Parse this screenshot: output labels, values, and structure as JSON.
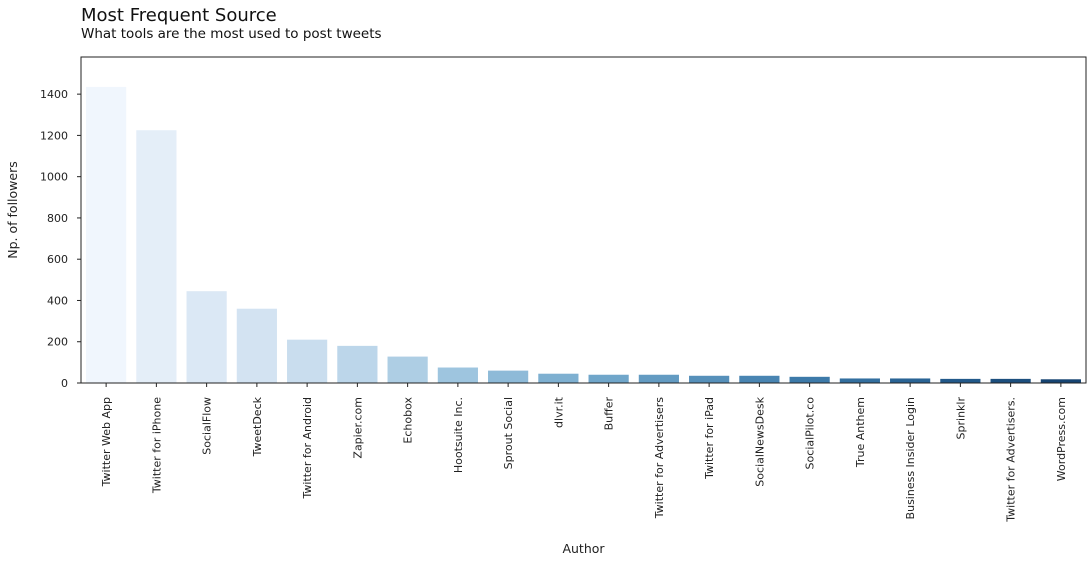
{
  "chart_data": {
    "type": "bar",
    "title": "Most Frequent Source",
    "subtitle": "What tools are the most used to post tweets",
    "xlabel": "Author",
    "ylabel": "Np. of followers",
    "ylim": [
      0,
      1580
    ],
    "yticks": [
      0,
      200,
      400,
      600,
      800,
      1000,
      1200,
      1400
    ],
    "grid": false,
    "categories": [
      "Twitter Web App",
      "Twitter for iPhone",
      "SocialFlow",
      "TweetDeck",
      "Twitter for Android",
      "Zapier.com",
      "Echobox",
      "Hootsuite Inc.",
      "Sprout Social",
      "dlvr.it",
      "Buffer",
      "Twitter for Advertisers",
      "Twitter for iPad",
      "SocialNewsDesk",
      "SocialPilot.co",
      "True Anthem",
      "Business Insider Login",
      "Sprinklr",
      "Twitter for Advertisers.",
      "WordPress.com"
    ],
    "values": [
      1435,
      1225,
      445,
      360,
      210,
      180,
      128,
      75,
      60,
      45,
      40,
      40,
      35,
      35,
      30,
      22,
      22,
      20,
      20,
      18
    ],
    "colors": [
      "#f0f6fd",
      "#e4eef8",
      "#dbe8f5",
      "#d3e3f2",
      "#c9ddee",
      "#bcd6ea",
      "#aecee4",
      "#9ec5df",
      "#8ebad8",
      "#7eb0d1",
      "#70a6ca",
      "#639bc2",
      "#5690ba",
      "#4985b2",
      "#3d7aa9",
      "#336f9f",
      "#2a6495",
      "#22598a",
      "#1c4f7e",
      "#164472"
    ]
  }
}
